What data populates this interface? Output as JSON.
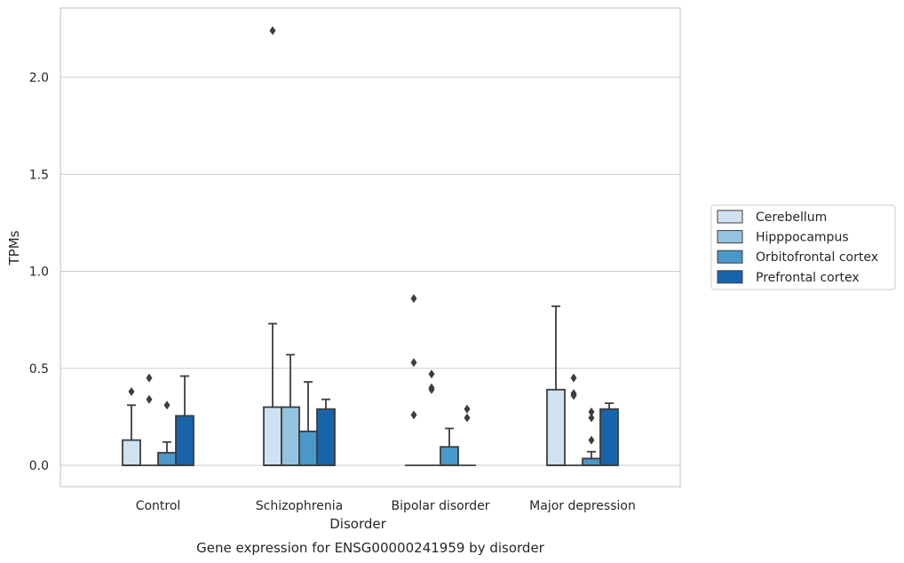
{
  "chart_data": {
    "type": "box",
    "title": "",
    "caption": "Gene expression for ENSG00000241959 by disorder",
    "xlabel": "Disorder",
    "ylabel": "TPMs",
    "ylim": [
      -0.11,
      2.36
    ],
    "yticks": [
      0.0,
      0.5,
      1.0,
      1.5,
      2.0
    ],
    "ytick_labels": [
      "0.0",
      "0.5",
      "1.0",
      "1.5",
      "2.0"
    ],
    "grid": "horizontal",
    "legend_position": "right",
    "categories": [
      "Control",
      "Schizophrenia",
      "Bipolar disorder",
      "Major depression"
    ],
    "series": [
      {
        "name": "Cerebellum",
        "color": "#d0e1f2",
        "boxes": [
          {
            "q1": 0.0,
            "median": 0.0,
            "q3": 0.13,
            "whisker_low": 0.0,
            "whisker_high": 0.31,
            "outliers": [
              0.38
            ]
          },
          {
            "q1": 0.0,
            "median": 0.0,
            "q3": 0.3,
            "whisker_low": 0.0,
            "whisker_high": 0.73,
            "outliers": [
              2.24
            ]
          },
          {
            "q1": 0.0,
            "median": 0.0,
            "q3": 0.0,
            "whisker_low": 0.0,
            "whisker_high": 0.0,
            "outliers": [
              0.26,
              0.53,
              0.86
            ]
          },
          {
            "q1": 0.0,
            "median": 0.0,
            "q3": 0.39,
            "whisker_low": 0.0,
            "whisker_high": 0.82,
            "outliers": []
          }
        ]
      },
      {
        "name": "Hipppocampus",
        "color": "#94c4df",
        "boxes": [
          {
            "q1": 0.0,
            "median": 0.0,
            "q3": 0.0,
            "whisker_low": 0.0,
            "whisker_high": 0.0,
            "outliers": [
              0.34,
              0.45
            ]
          },
          {
            "q1": 0.0,
            "median": 0.0,
            "q3": 0.3,
            "whisker_low": 0.0,
            "whisker_high": 0.57,
            "outliers": []
          },
          {
            "q1": 0.0,
            "median": 0.0,
            "q3": 0.0,
            "whisker_low": 0.0,
            "whisker_high": 0.0,
            "outliers": [
              0.39,
              0.4,
              0.47
            ]
          },
          {
            "q1": 0.0,
            "median": 0.0,
            "q3": 0.0,
            "whisker_low": 0.0,
            "whisker_high": 0.0,
            "outliers": [
              0.36,
              0.37,
              0.45
            ]
          }
        ]
      },
      {
        "name": "Orbitofrontal cortex",
        "color": "#4a98c9",
        "boxes": [
          {
            "q1": 0.0,
            "median": 0.0,
            "q3": 0.065,
            "whisker_low": 0.0,
            "whisker_high": 0.12,
            "outliers": [
              0.31
            ]
          },
          {
            "q1": 0.0,
            "median": 0.0,
            "q3": 0.175,
            "whisker_low": 0.0,
            "whisker_high": 0.43,
            "outliers": []
          },
          {
            "q1": 0.0,
            "median": 0.0,
            "q3": 0.095,
            "whisker_low": 0.0,
            "whisker_high": 0.19,
            "outliers": []
          },
          {
            "q1": 0.0,
            "median": 0.0,
            "q3": 0.035,
            "whisker_low": 0.0,
            "whisker_high": 0.07,
            "outliers": [
              0.13,
              0.245,
              0.275
            ]
          }
        ]
      },
      {
        "name": "Prefrontal cortex",
        "color": "#1764ab",
        "boxes": [
          {
            "q1": 0.0,
            "median": 0.0,
            "q3": 0.255,
            "whisker_low": 0.0,
            "whisker_high": 0.46,
            "outliers": []
          },
          {
            "q1": 0.0,
            "median": 0.0,
            "q3": 0.29,
            "whisker_low": 0.0,
            "whisker_high": 0.34,
            "outliers": []
          },
          {
            "q1": 0.0,
            "median": 0.0,
            "q3": 0.0,
            "whisker_low": 0.0,
            "whisker_high": 0.0,
            "outliers": [
              0.245,
              0.29
            ]
          },
          {
            "q1": 0.0,
            "median": 0.0,
            "q3": 0.29,
            "whisker_low": 0.0,
            "whisker_high": 0.32,
            "outliers": []
          }
        ]
      }
    ]
  }
}
